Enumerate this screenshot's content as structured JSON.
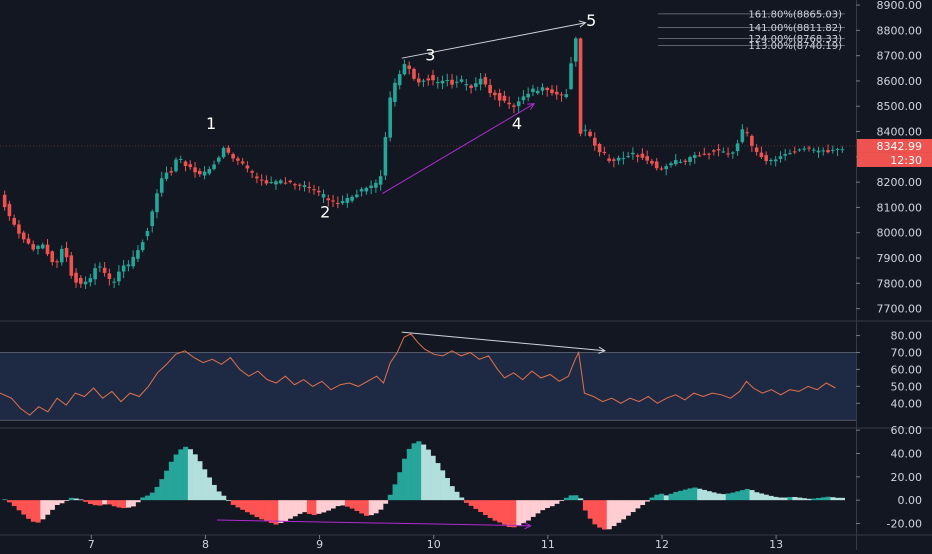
{
  "colors": {
    "background": "#131722",
    "grid_line": "#2a2e39",
    "axis_text": "#d1d4dc",
    "candle_up": "#26a69a",
    "candle_down": "#ef5350",
    "hist_up_strong": "#26a69a",
    "hist_up_weak": "#b2dfdb",
    "hist_down_strong": "#ff5252",
    "hist_down_weak": "#ffcdd2",
    "rsi_line": "#e0704a",
    "rsi_band": "#1e2a44",
    "trend_purple": "#b02bd0",
    "trend_white": "#d1d4dc",
    "price_tag_bg": "#ef5350"
  },
  "price_tag": {
    "price": "8342.99",
    "countdown": "12:30"
  },
  "fib_levels": [
    {
      "label": "161.80%(8865.03)",
      "value": 8865.03
    },
    {
      "label": "141.00%(8811.82)",
      "value": 8811.82
    },
    {
      "label": "124.00%(8768.33)",
      "value": 8768.33
    },
    {
      "label": "113.00%(8740.19)",
      "value": 8740.19
    }
  ],
  "wave_labels": [
    {
      "text": "1",
      "day": 8.05,
      "price": 8410
    },
    {
      "text": "2",
      "day": 9.05,
      "price": 8060
    },
    {
      "text": "3",
      "day": 9.97,
      "price": 8680
    },
    {
      "text": "4",
      "day": 10.73,
      "price": 8410
    },
    {
      "text": "5",
      "day": 11.38,
      "price": 8818
    }
  ],
  "chart_data": [
    {
      "type": "candlestick",
      "title": "",
      "x_axis": {
        "ticks": [
          "7",
          "8",
          "9",
          "10",
          "11",
          "12",
          "13"
        ],
        "tick_values": [
          7,
          8,
          9,
          10,
          11,
          12,
          13
        ],
        "range": [
          6.2,
          13.7
        ]
      },
      "y_axis": {
        "ticks": [
          "7700.00",
          "7800.00",
          "7900.00",
          "8000.00",
          "8100.00",
          "8200.00",
          "8300.00",
          "8400.00",
          "8500.00",
          "8600.00",
          "8700.00",
          "8800.00",
          "8900.00"
        ],
        "tick_values": [
          7700,
          7800,
          7900,
          8000,
          8100,
          8200,
          8300,
          8400,
          8500,
          8600,
          8700,
          8800,
          8900
        ],
        "range": [
          7655,
          8920
        ]
      },
      "price_path": [
        [
          6.22,
          8150
        ],
        [
          6.3,
          8060
        ],
        [
          6.38,
          8000
        ],
        [
          6.5,
          7930
        ],
        [
          6.6,
          7960
        ],
        [
          6.7,
          7870
        ],
        [
          6.78,
          7960
        ],
        [
          6.84,
          7840
        ],
        [
          6.92,
          7790
        ],
        [
          7.0,
          7800
        ],
        [
          7.07,
          7870
        ],
        [
          7.12,
          7840
        ],
        [
          7.2,
          7800
        ],
        [
          7.28,
          7870
        ],
        [
          7.35,
          7880
        ],
        [
          7.42,
          7930
        ],
        [
          7.5,
          8000
        ],
        [
          7.55,
          8070
        ],
        [
          7.6,
          8160
        ],
        [
          7.66,
          8240
        ],
        [
          7.72,
          8230
        ],
        [
          7.78,
          8300
        ],
        [
          7.82,
          8280
        ],
        [
          7.9,
          8260
        ],
        [
          7.96,
          8230
        ],
        [
          8.04,
          8250
        ],
        [
          8.12,
          8280
        ],
        [
          8.18,
          8330
        ],
        [
          8.24,
          8300
        ],
        [
          8.3,
          8280
        ],
        [
          8.36,
          8260
        ],
        [
          8.42,
          8230
        ],
        [
          8.5,
          8210
        ],
        [
          8.6,
          8200
        ],
        [
          8.7,
          8210
        ],
        [
          8.8,
          8180
        ],
        [
          8.9,
          8180
        ],
        [
          9.0,
          8150
        ],
        [
          9.08,
          8140
        ],
        [
          9.16,
          8120
        ],
        [
          9.24,
          8130
        ],
        [
          9.3,
          8150
        ],
        [
          9.38,
          8160
        ],
        [
          9.44,
          8170
        ],
        [
          9.5,
          8180
        ],
        [
          9.56,
          8220
        ],
        [
          9.6,
          8380
        ],
        [
          9.64,
          8530
        ],
        [
          9.7,
          8620
        ],
        [
          9.78,
          8680
        ],
        [
          9.84,
          8620
        ],
        [
          9.9,
          8600
        ],
        [
          9.96,
          8620
        ],
        [
          10.04,
          8580
        ],
        [
          10.12,
          8600
        ],
        [
          10.2,
          8580
        ],
        [
          10.28,
          8600
        ],
        [
          10.36,
          8580
        ],
        [
          10.44,
          8620
        ],
        [
          10.52,
          8560
        ],
        [
          10.6,
          8530
        ],
        [
          10.66,
          8500
        ],
        [
          10.72,
          8490
        ],
        [
          10.8,
          8530
        ],
        [
          10.88,
          8560
        ],
        [
          10.96,
          8580
        ],
        [
          11.04,
          8570
        ],
        [
          11.12,
          8540
        ],
        [
          11.18,
          8550
        ],
        [
          11.23,
          8690
        ],
        [
          11.26,
          8820
        ],
        [
          11.3,
          8390
        ],
        [
          11.36,
          8400
        ],
        [
          11.46,
          8320
        ],
        [
          11.56,
          8290
        ],
        [
          11.66,
          8300
        ],
        [
          11.76,
          8320
        ],
        [
          11.86,
          8290
        ],
        [
          11.94,
          8270
        ],
        [
          11.98,
          8240
        ],
        [
          12.02,
          8250
        ],
        [
          12.12,
          8280
        ],
        [
          12.22,
          8290
        ],
        [
          12.32,
          8310
        ],
        [
          12.42,
          8320
        ],
        [
          12.52,
          8320
        ],
        [
          12.62,
          8300
        ],
        [
          12.7,
          8360
        ],
        [
          12.74,
          8420
        ],
        [
          12.8,
          8350
        ],
        [
          12.86,
          8320
        ],
        [
          12.94,
          8290
        ],
        [
          13.04,
          8300
        ],
        [
          13.12,
          8310
        ],
        [
          13.2,
          8320
        ],
        [
          13.28,
          8330
        ],
        [
          13.36,
          8320
        ],
        [
          13.44,
          8330
        ],
        [
          13.5,
          8330
        ],
        [
          13.56,
          8340
        ]
      ],
      "trendlines": [
        {
          "color": "purple",
          "from": [
            9.55,
            8155
          ],
          "to": [
            10.88,
            8510
          ]
        },
        {
          "color": "white",
          "from": [
            9.72,
            8690
          ],
          "to": [
            11.33,
            8830
          ]
        }
      ]
    },
    {
      "type": "line",
      "title": "",
      "y_axis": {
        "ticks": [
          "40.00",
          "50.00",
          "60.00",
          "70.00",
          "80.00"
        ],
        "tick_values": [
          40,
          50,
          60,
          70,
          80
        ],
        "range": [
          26,
          88
        ]
      },
      "band": [
        30,
        70
      ],
      "values_path": [
        [
          6.2,
          46
        ],
        [
          6.3,
          43
        ],
        [
          6.38,
          37
        ],
        [
          6.46,
          33
        ],
        [
          6.54,
          38
        ],
        [
          6.62,
          35
        ],
        [
          6.7,
          43
        ],
        [
          6.78,
          39
        ],
        [
          6.86,
          46
        ],
        [
          6.94,
          44
        ],
        [
          7.02,
          49
        ],
        [
          7.1,
          43
        ],
        [
          7.18,
          47
        ],
        [
          7.26,
          41
        ],
        [
          7.34,
          46
        ],
        [
          7.42,
          44
        ],
        [
          7.5,
          50
        ],
        [
          7.58,
          58
        ],
        [
          7.66,
          63
        ],
        [
          7.74,
          69
        ],
        [
          7.82,
          71
        ],
        [
          7.9,
          67
        ],
        [
          7.98,
          64
        ],
        [
          8.06,
          66
        ],
        [
          8.14,
          63
        ],
        [
          8.22,
          67
        ],
        [
          8.3,
          60
        ],
        [
          8.38,
          56
        ],
        [
          8.46,
          59
        ],
        [
          8.54,
          54
        ],
        [
          8.62,
          52
        ],
        [
          8.7,
          56
        ],
        [
          8.78,
          51
        ],
        [
          8.86,
          54
        ],
        [
          8.94,
          50
        ],
        [
          9.02,
          53
        ],
        [
          9.1,
          48
        ],
        [
          9.18,
          51
        ],
        [
          9.26,
          52
        ],
        [
          9.34,
          50
        ],
        [
          9.42,
          53
        ],
        [
          9.5,
          56
        ],
        [
          9.56,
          52
        ],
        [
          9.62,
          64
        ],
        [
          9.68,
          70
        ],
        [
          9.74,
          79
        ],
        [
          9.8,
          81
        ],
        [
          9.86,
          76
        ],
        [
          9.92,
          72
        ],
        [
          10.0,
          69
        ],
        [
          10.08,
          68
        ],
        [
          10.16,
          71
        ],
        [
          10.24,
          68
        ],
        [
          10.32,
          70
        ],
        [
          10.4,
          66
        ],
        [
          10.48,
          68
        ],
        [
          10.56,
          60
        ],
        [
          10.62,
          55
        ],
        [
          10.7,
          58
        ],
        [
          10.78,
          54
        ],
        [
          10.86,
          59
        ],
        [
          10.94,
          55
        ],
        [
          11.02,
          57
        ],
        [
          11.1,
          53
        ],
        [
          11.18,
          56
        ],
        [
          11.24,
          66
        ],
        [
          11.27,
          70
        ],
        [
          11.32,
          46
        ],
        [
          11.4,
          44
        ],
        [
          11.48,
          41
        ],
        [
          11.56,
          43
        ],
        [
          11.64,
          40
        ],
        [
          11.72,
          43
        ],
        [
          11.8,
          41
        ],
        [
          11.88,
          44
        ],
        [
          11.96,
          40
        ],
        [
          12.04,
          43
        ],
        [
          12.12,
          45
        ],
        [
          12.2,
          42
        ],
        [
          12.28,
          46
        ],
        [
          12.36,
          44
        ],
        [
          12.44,
          46
        ],
        [
          12.52,
          45
        ],
        [
          12.6,
          43
        ],
        [
          12.68,
          47
        ],
        [
          12.74,
          53
        ],
        [
          12.8,
          49
        ],
        [
          12.88,
          46
        ],
        [
          12.96,
          48
        ],
        [
          13.04,
          45
        ],
        [
          13.12,
          48
        ],
        [
          13.2,
          47
        ],
        [
          13.28,
          50
        ],
        [
          13.36,
          48
        ],
        [
          13.44,
          52
        ],
        [
          13.52,
          49
        ]
      ],
      "trendline": {
        "color": "white",
        "from": [
          9.72,
          82
        ],
        "to": [
          11.5,
          71
        ]
      }
    },
    {
      "type": "bar",
      "title": "",
      "y_axis": {
        "ticks": [
          "-20.00",
          "0.00",
          "20.00",
          "40.00",
          "60.00"
        ],
        "tick_values": [
          -20,
          0,
          20,
          40,
          60
        ],
        "range": [
          -29,
          61
        ]
      },
      "histogram_path": [
        [
          6.2,
          2
        ],
        [
          6.28,
          -3
        ],
        [
          6.36,
          -10
        ],
        [
          6.44,
          -17
        ],
        [
          6.5,
          -20
        ],
        [
          6.56,
          -16
        ],
        [
          6.62,
          -10
        ],
        [
          6.68,
          -4
        ],
        [
          6.74,
          -2
        ],
        [
          6.8,
          2
        ],
        [
          6.88,
          1
        ],
        [
          6.96,
          -3
        ],
        [
          7.04,
          -5
        ],
        [
          7.12,
          -3
        ],
        [
          7.2,
          -6
        ],
        [
          7.28,
          -7
        ],
        [
          7.36,
          -5
        ],
        [
          7.42,
          2
        ],
        [
          7.5,
          5
        ],
        [
          7.56,
          12
        ],
        [
          7.62,
          22
        ],
        [
          7.68,
          33
        ],
        [
          7.74,
          42
        ],
        [
          7.8,
          46
        ],
        [
          7.86,
          43
        ],
        [
          7.92,
          35
        ],
        [
          7.98,
          25
        ],
        [
          8.04,
          15
        ],
        [
          8.1,
          7
        ],
        [
          8.16,
          2
        ],
        [
          8.22,
          -4
        ],
        [
          8.3,
          -8
        ],
        [
          8.38,
          -12
        ],
        [
          8.46,
          -16
        ],
        [
          8.54,
          -19
        ],
        [
          8.6,
          -21
        ],
        [
          8.68,
          -18
        ],
        [
          8.76,
          -14
        ],
        [
          8.84,
          -10
        ],
        [
          8.92,
          -13
        ],
        [
          9.0,
          -11
        ],
        [
          9.08,
          -8
        ],
        [
          9.16,
          -4
        ],
        [
          9.24,
          -6
        ],
        [
          9.32,
          -10
        ],
        [
          9.4,
          -14
        ],
        [
          9.48,
          -11
        ],
        [
          9.54,
          -6
        ],
        [
          9.6,
          5
        ],
        [
          9.66,
          18
        ],
        [
          9.72,
          35
        ],
        [
          9.78,
          47
        ],
        [
          9.84,
          51
        ],
        [
          9.9,
          47
        ],
        [
          9.96,
          40
        ],
        [
          10.02,
          31
        ],
        [
          10.08,
          22
        ],
        [
          10.14,
          12
        ],
        [
          10.2,
          5
        ],
        [
          10.26,
          -2
        ],
        [
          10.34,
          -7
        ],
        [
          10.42,
          -12
        ],
        [
          10.5,
          -17
        ],
        [
          10.58,
          -20
        ],
        [
          10.66,
          -24
        ],
        [
          10.72,
          -22
        ],
        [
          10.8,
          -18
        ],
        [
          10.88,
          -12
        ],
        [
          10.94,
          -8
        ],
        [
          11.02,
          -5
        ],
        [
          11.08,
          -2
        ],
        [
          11.14,
          2
        ],
        [
          11.2,
          5
        ],
        [
          11.26,
          3
        ],
        [
          11.32,
          -12
        ],
        [
          11.38,
          -20
        ],
        [
          11.44,
          -24
        ],
        [
          11.5,
          -26
        ],
        [
          11.56,
          -22
        ],
        [
          11.62,
          -18
        ],
        [
          11.7,
          -12
        ],
        [
          11.78,
          -6
        ],
        [
          11.84,
          -2
        ],
        [
          11.9,
          3
        ],
        [
          11.96,
          6
        ],
        [
          12.02,
          4
        ],
        [
          12.1,
          7
        ],
        [
          12.18,
          9
        ],
        [
          12.26,
          11
        ],
        [
          12.34,
          9
        ],
        [
          12.42,
          7
        ],
        [
          12.5,
          5
        ],
        [
          12.58,
          6
        ],
        [
          12.66,
          8
        ],
        [
          12.74,
          10
        ],
        [
          12.8,
          7
        ],
        [
          12.88,
          5
        ],
        [
          12.96,
          3
        ],
        [
          13.04,
          2
        ],
        [
          13.12,
          3
        ],
        [
          13.2,
          2
        ],
        [
          13.28,
          1
        ],
        [
          13.36,
          2
        ],
        [
          13.44,
          3
        ],
        [
          13.52,
          2
        ]
      ],
      "trendline": {
        "color": "purple",
        "from": [
          8.1,
          -17
        ],
        "to": [
          10.85,
          -22
        ]
      }
    }
  ]
}
